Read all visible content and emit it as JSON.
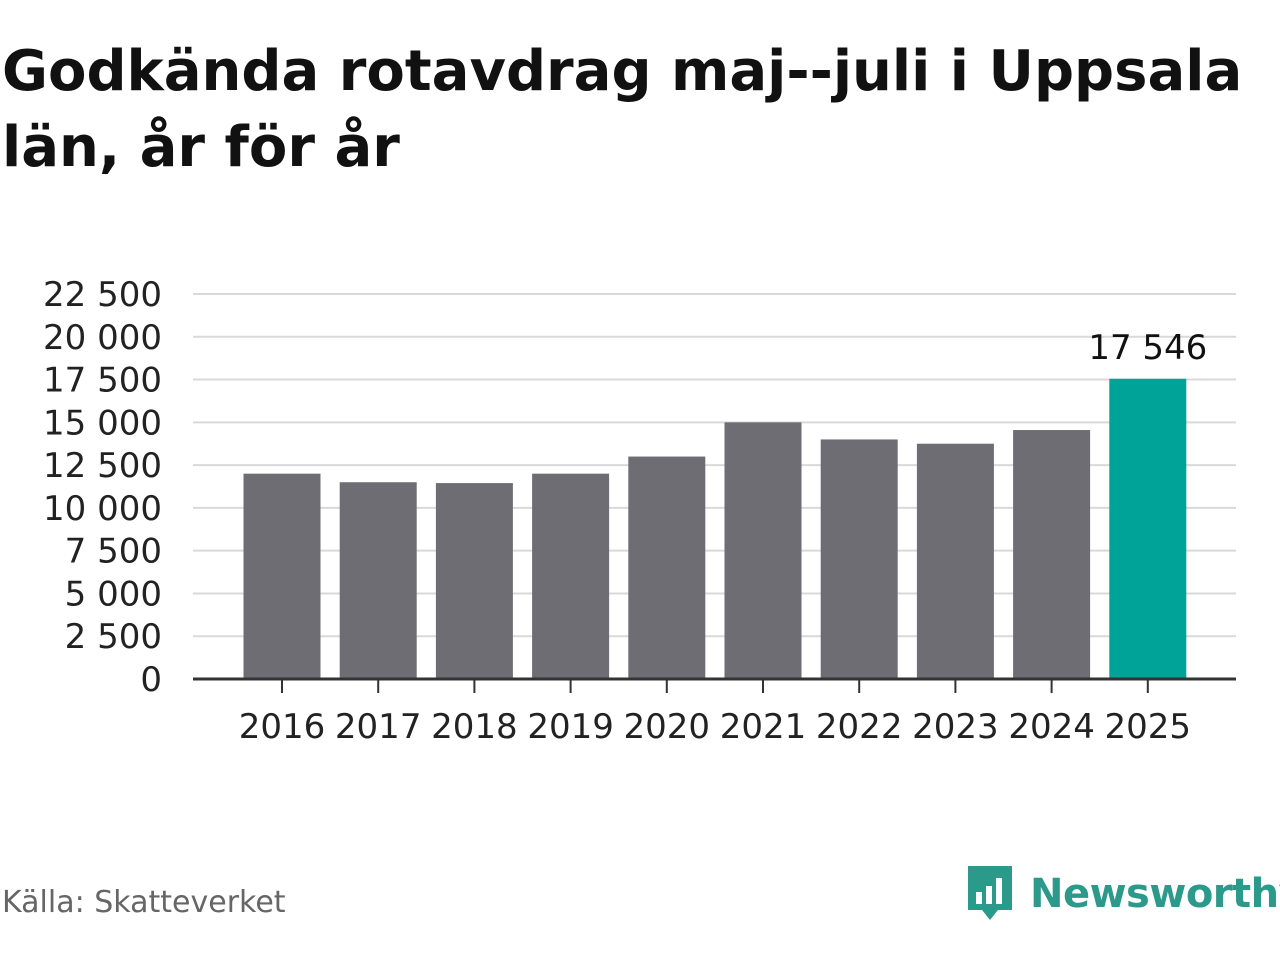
{
  "title": "Godkända rotavdrag maj--juli i Uppsala län, år för år",
  "source": "Källa: Skatteverket",
  "brand": {
    "name": "Newsworthy",
    "icon": "newsworthy-logo-icon"
  },
  "colors": {
    "bar": "#6e6d73",
    "highlight": "#00a398",
    "grid": "#d9d9d9",
    "axis": "#333333",
    "brand": "#2b9a8a"
  },
  "chart_data": {
    "type": "bar",
    "categories": [
      "2016",
      "2017",
      "2018",
      "2019",
      "2020",
      "2021",
      "2022",
      "2023",
      "2024",
      "2025"
    ],
    "values": [
      12000,
      11500,
      11450,
      12000,
      13000,
      15000,
      14000,
      13750,
      14550,
      17546
    ],
    "highlight_index": 9,
    "data_labels": [
      {
        "index": 9,
        "text": "17 546"
      }
    ],
    "ylim": [
      0,
      22500
    ],
    "yticks": [
      0,
      2500,
      5000,
      7500,
      10000,
      12500,
      15000,
      17500,
      20000,
      22500
    ],
    "ytick_labels": [
      "0",
      "2 500",
      "5 000",
      "7 500",
      "10 000",
      "12 500",
      "15 000",
      "17 500",
      "20 000",
      "22 500"
    ],
    "grid": true,
    "legend": "none"
  }
}
